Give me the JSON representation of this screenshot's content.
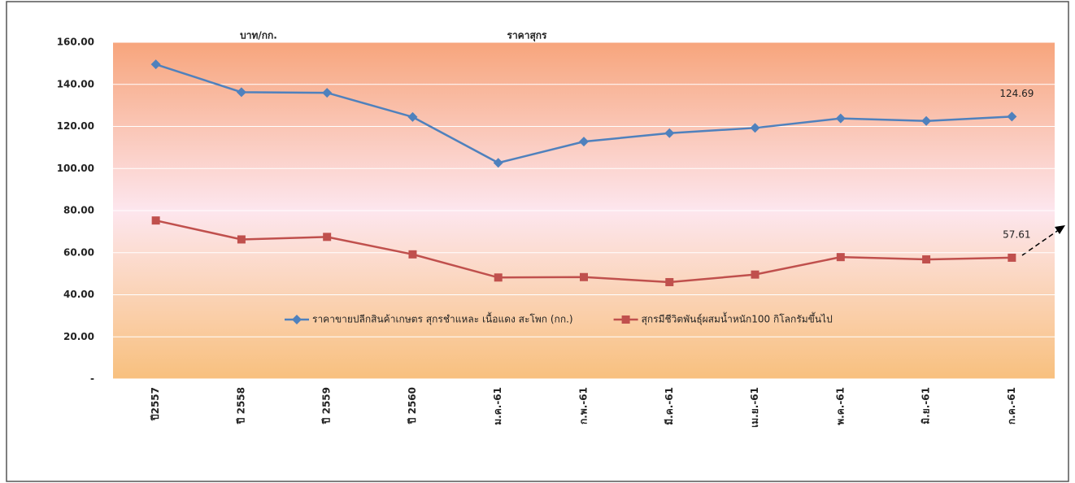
{
  "chart_data": {
    "type": "line",
    "title": "ราคาสุกร",
    "y_label": "บาท/กก.",
    "categories": [
      "ปี2557",
      "ปี 2558",
      "ปี 2559",
      "ปี 2560",
      "ม.ค.-61",
      "ก.พ.-61",
      "มี.ค.-61",
      "เม.ย.-61",
      "พ.ค.-61",
      "มิ.ย.-61",
      "ก.ค.-61"
    ],
    "series": [
      {
        "name": "ราคาขายปลีกสินค้าเกษตร สุกรชำแหละ เนื้อแดง สะโพก (กก.)",
        "color": "#4f81bd",
        "marker": "diamond",
        "values": [
          149.5,
          136.3,
          136.0,
          124.5,
          102.7,
          112.8,
          116.8,
          119.3,
          123.8,
          122.6,
          124.69
        ]
      },
      {
        "name": "สุกรมีชีวิตพันธุ์ผสมน้ำหนัก100 กิโลกรัมขึ้นไป",
        "color": "#c0504d",
        "marker": "square",
        "values": [
          75.3,
          66.3,
          67.5,
          59.2,
          48.2,
          48.4,
          46.0,
          49.6,
          57.9,
          56.8,
          57.61
        ]
      }
    ],
    "ylim": [
      0,
      160
    ],
    "yticks": [
      {
        "value": 0,
        "label": "-"
      },
      {
        "value": 20,
        "label": "20.00"
      },
      {
        "value": 40,
        "label": "40.00"
      },
      {
        "value": 60,
        "label": "60.00"
      },
      {
        "value": 80,
        "label": "80.00"
      },
      {
        "value": 100,
        "label": "100.00"
      },
      {
        "value": 120,
        "label": "120.00"
      },
      {
        "value": 140,
        "label": "140.00"
      },
      {
        "value": 160,
        "label": "160.00"
      }
    ],
    "grid": true,
    "legend": "bottom"
  }
}
